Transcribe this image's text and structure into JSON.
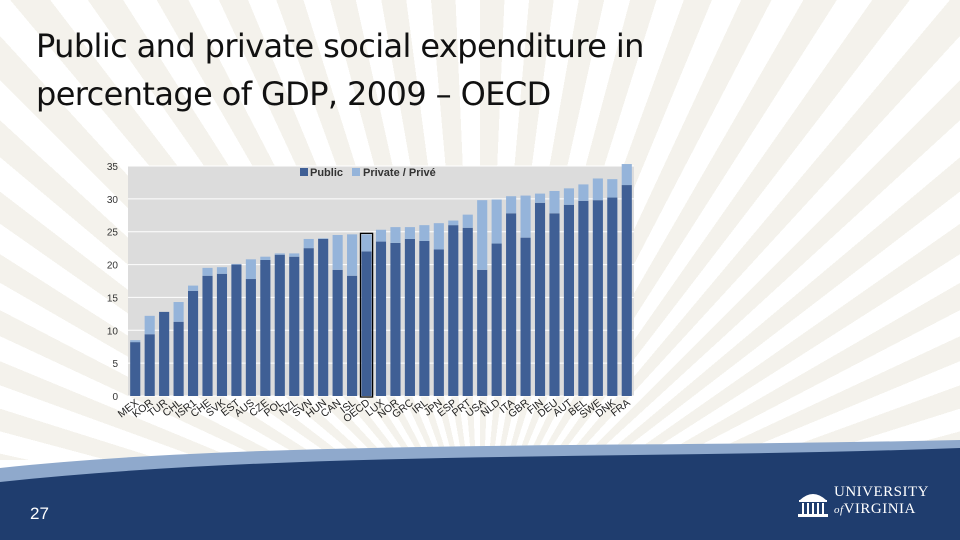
{
  "slide": {
    "title_line1": "Public and private social expenditure in",
    "title_line2": "percentage of GDP, 2009 – OECD",
    "page_number": "27",
    "logo_line1": "UNIVERSITY",
    "logo_line2": "VIRGINIA",
    "logo_of": "of",
    "colors": {
      "footer": "#1f3d6e",
      "public": "#3f5f95",
      "private": "#95b4da",
      "plot_bg": "#dcdcdc"
    }
  },
  "chart_data": {
    "type": "bar",
    "stacked": true,
    "title": "",
    "xlabel": "",
    "ylabel": "",
    "ylim": [
      0,
      35
    ],
    "yticks": [
      0,
      5,
      10,
      15,
      20,
      25,
      30,
      35
    ],
    "grid": true,
    "legend_position": "top-center",
    "highlight_category": "OECD",
    "categories": [
      "MEX",
      "KOR",
      "TUR",
      "CHL",
      "ISR1",
      "CHE",
      "SVK",
      "EST",
      "AUS",
      "CZE",
      "POL",
      "NZL",
      "SVN",
      "HUN",
      "CAN",
      "ISL",
      "OECD",
      "LUX",
      "NOR",
      "GRC",
      "IRL",
      "JPN",
      "ESP",
      "PRT",
      "USA",
      "NLD",
      "ITA",
      "GBR",
      "FIN",
      "DEU",
      "AUT",
      "BEL",
      "SWE",
      "DNK",
      "FRA"
    ],
    "series": [
      {
        "name": "Public",
        "values": [
          8.2,
          9.4,
          12.8,
          11.3,
          16.0,
          18.3,
          18.6,
          20.0,
          17.8,
          20.7,
          21.5,
          21.2,
          22.5,
          23.9,
          19.2,
          18.3,
          22.0,
          23.5,
          23.3,
          23.9,
          23.6,
          22.3,
          26.0,
          25.6,
          19.2,
          23.2,
          27.8,
          24.1,
          29.4,
          27.8,
          29.1,
          29.7,
          29.8,
          30.2,
          32.1
        ]
      },
      {
        "name": "Private / Privé",
        "values": [
          0.3,
          2.8,
          0.0,
          3.0,
          0.8,
          1.2,
          1.0,
          0.1,
          3.0,
          0.5,
          0.2,
          0.5,
          1.4,
          0.1,
          5.3,
          6.3,
          2.6,
          1.8,
          2.4,
          1.8,
          2.4,
          4.0,
          0.7,
          2.0,
          10.6,
          6.7,
          2.6,
          6.4,
          1.4,
          3.4,
          2.5,
          2.5,
          3.3,
          2.8,
          3.2
        ]
      }
    ]
  }
}
